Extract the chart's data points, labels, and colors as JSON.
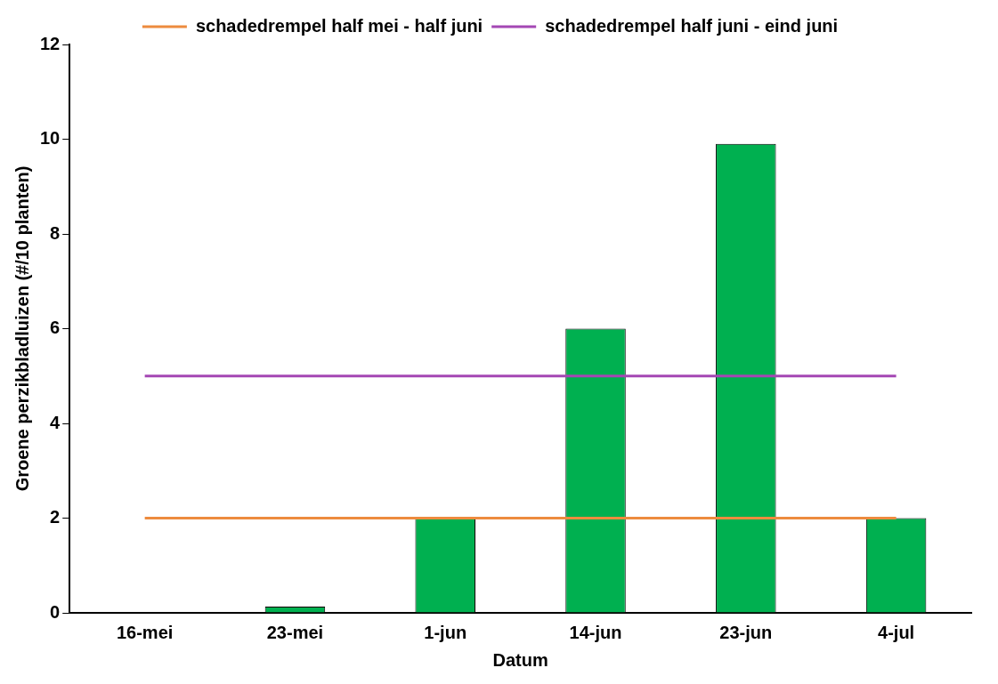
{
  "chart_data": {
    "type": "bar",
    "xlabel": "Datum",
    "ylabel": "Groene perzikbladluizen (#/10 planten)",
    "categories": [
      "16-mei",
      "23-mei",
      "1-jun",
      "14-jun",
      "23-jun",
      "4-jul"
    ],
    "series": [
      {
        "color": "#00b050",
        "values": [
          0,
          0.13,
          2,
          6,
          9.9,
          2
        ]
      },
      {
        "type": "line",
        "name": "schadedrempel half mei - half juni",
        "color": "#ed8b3e",
        "values": [
          2,
          2,
          2,
          2,
          2,
          2
        ]
      },
      {
        "type": "line",
        "name": "schadedrempel half juni - eind juni",
        "color": "#a447b4",
        "values": [
          5,
          5,
          5,
          5,
          5,
          5
        ]
      }
    ],
    "ylim": [
      0,
      12
    ],
    "yticks": [
      0,
      2,
      4,
      6,
      8,
      10,
      12
    ],
    "grid": false,
    "legend": "top",
    "marker": "none",
    "line_style": "solid"
  }
}
